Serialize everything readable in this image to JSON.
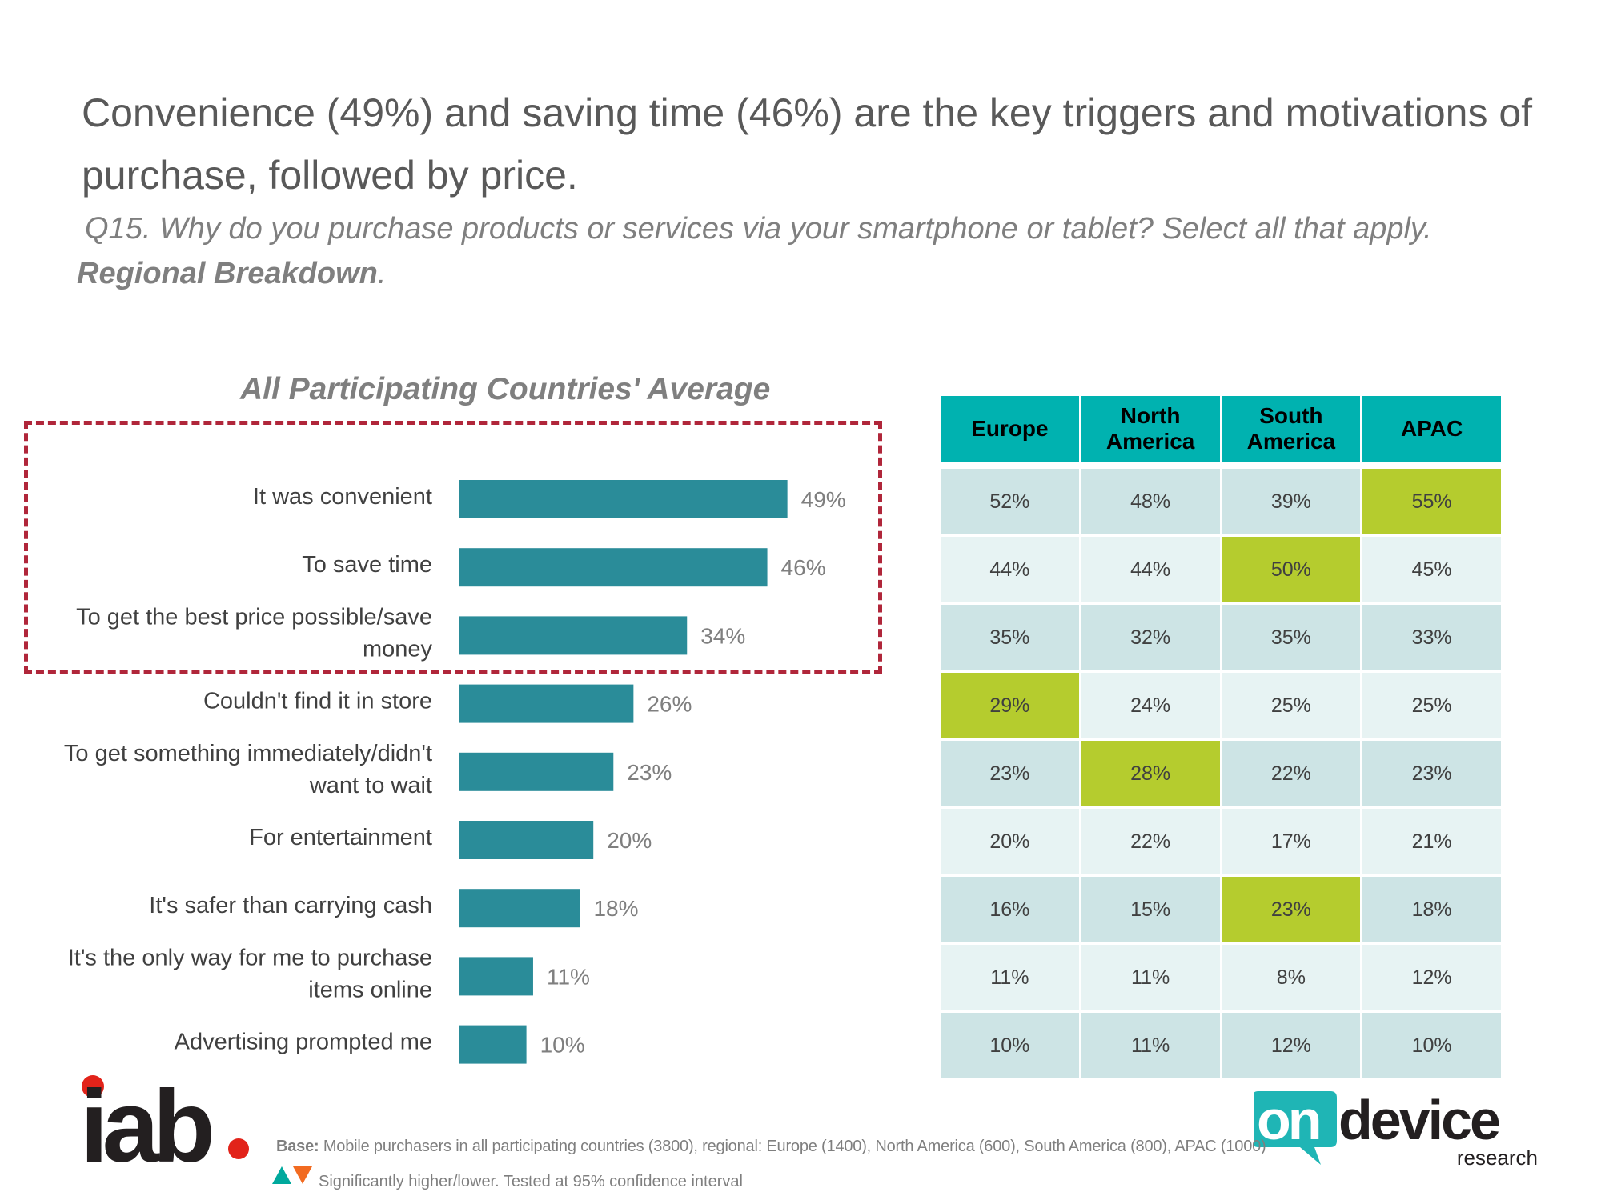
{
  "header": {
    "headline": "Convenience (49%) and saving time (46%) are the key triggers and motivations of purchase, followed by price.",
    "question": "Q15. Why do you purchase products or services via your smartphone or tablet? Select all that apply.",
    "breakdown_bold": "Regional Breakdown",
    "breakdown_suffix": "."
  },
  "chart_data": {
    "type": "bar",
    "orientation": "horizontal",
    "title": "All Participating Countries' Average",
    "categories": [
      "It was convenient",
      "To save time",
      "To get the best price possible/save money",
      "Couldn't find it in store",
      "To get something immediately/didn't want to wait",
      "For entertainment",
      "It's safer than carrying cash",
      "It's the only way for me to purchase items online",
      "Advertising prompted me"
    ],
    "category_lines": [
      [
        "It was convenient"
      ],
      [
        "To save time"
      ],
      [
        "To get the best price possible/save",
        "money"
      ],
      [
        "Couldn't find it in store"
      ],
      [
        "To get something immediately/didn't",
        "want to wait"
      ],
      [
        "For entertainment"
      ],
      [
        "It's safer than carrying cash"
      ],
      [
        "It's the only way for me to purchase",
        "items online"
      ],
      [
        "Advertising prompted me"
      ]
    ],
    "values": [
      49,
      46,
      34,
      26,
      23,
      20,
      18,
      11,
      10
    ],
    "value_labels": [
      "49%",
      "46%",
      "34%",
      "26%",
      "23%",
      "20%",
      "18%",
      "11%",
      "10%"
    ],
    "xlim": [
      0,
      100
    ],
    "bar_color": "#2a8c99",
    "highlighted_rows": [
      0,
      1,
      2
    ],
    "highlight_color": "#b0263a"
  },
  "regional_table": {
    "headers": [
      [
        "Europe"
      ],
      [
        "North",
        "America"
      ],
      [
        "South",
        "America"
      ],
      [
        "APAC"
      ]
    ],
    "rows": [
      [
        "52%",
        "48%",
        "39%",
        "55%"
      ],
      [
        "44%",
        "44%",
        "50%",
        "45%"
      ],
      [
        "35%",
        "32%",
        "35%",
        "33%"
      ],
      [
        "29%",
        "24%",
        "25%",
        "25%"
      ],
      [
        "23%",
        "28%",
        "22%",
        "23%"
      ],
      [
        "20%",
        "22%",
        "17%",
        "21%"
      ],
      [
        "16%",
        "15%",
        "23%",
        "18%"
      ],
      [
        "11%",
        "11%",
        "8%",
        "12%"
      ],
      [
        "10%",
        "11%",
        "12%",
        "10%"
      ]
    ],
    "highlights": [
      [
        0,
        3
      ],
      [
        1,
        2
      ],
      [
        3,
        0
      ],
      [
        4,
        1
      ],
      [
        6,
        2
      ]
    ],
    "colors": {
      "header": "#00b2b0",
      "row_dark": "#cde4e5",
      "row_light": "#e7f3f3",
      "highlight": "#b5cc2e"
    }
  },
  "footer": {
    "base_label": "Base:",
    "base_text": "Mobile purchasers in all participating countries (3800), regional: Europe (1400), North America (600), South America (800), APAC (1000)",
    "significance_text": "Significantly higher/lower. Tested at 95% confidence interval",
    "iab_logo": "iab",
    "ondevice_logo_line1": "on",
    "ondevice_logo_line2": "device",
    "ondevice_logo_line3": "research"
  }
}
